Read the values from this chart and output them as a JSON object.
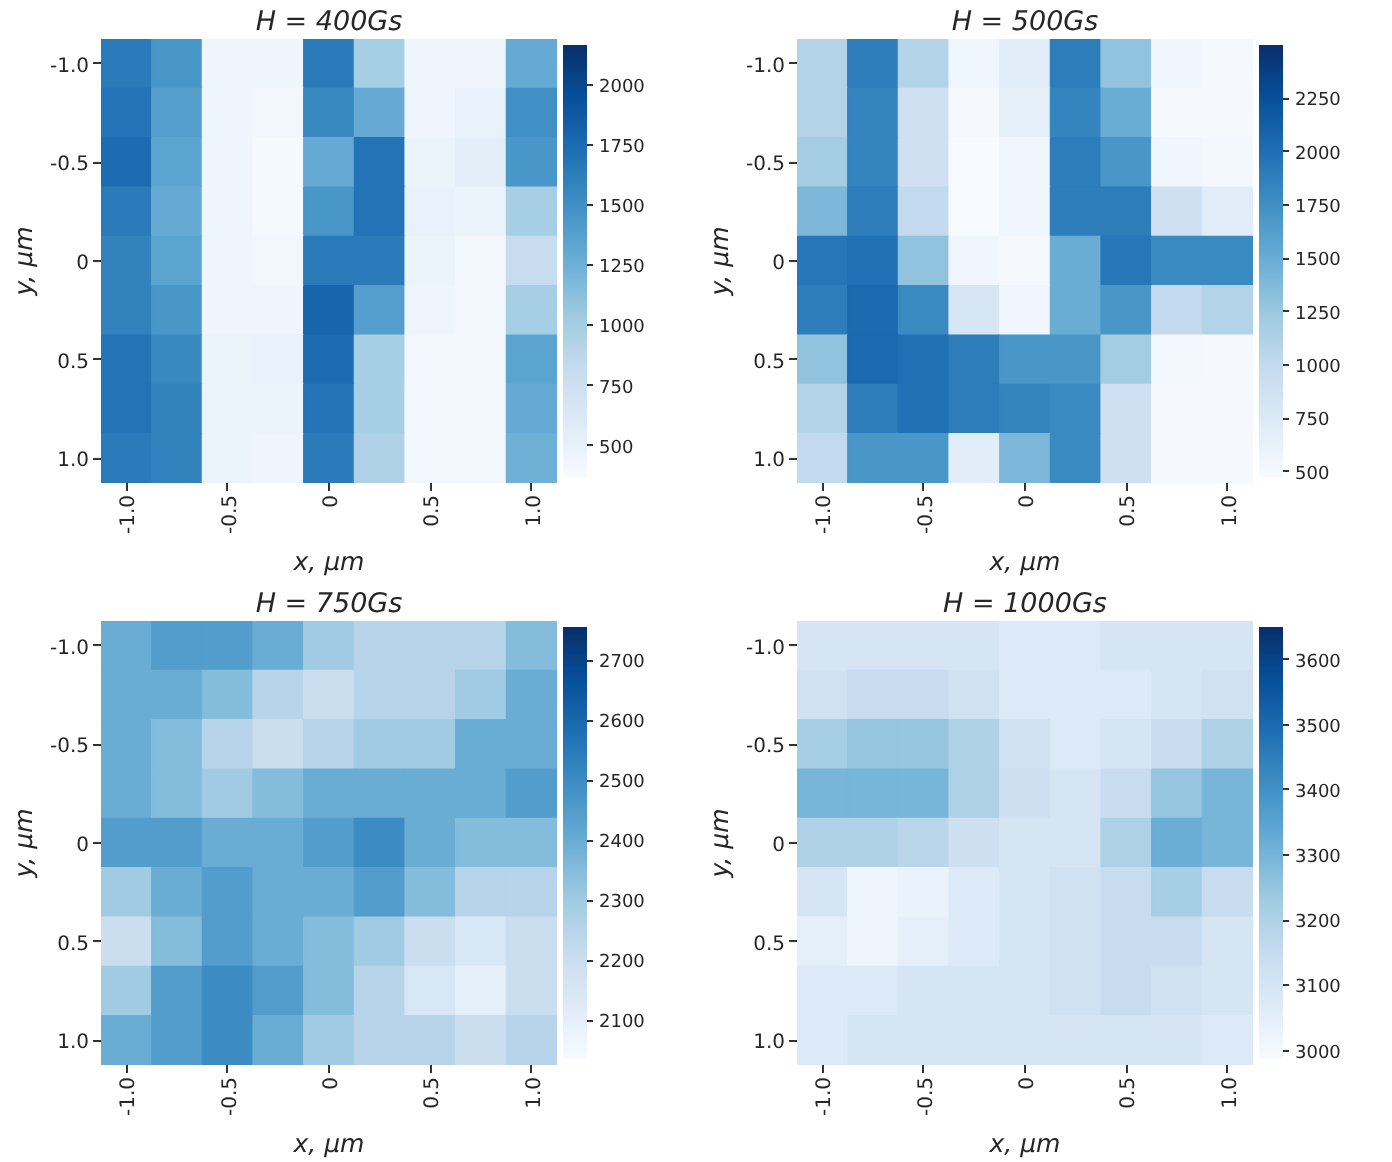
{
  "chart_data": [
    {
      "type": "heatmap",
      "title": "H = 400Gs",
      "xlabel": "x, μm",
      "ylabel": "y, μm",
      "categories": [
        "-1.0",
        null,
        "-0.5",
        null,
        "0",
        null,
        "0.5",
        null,
        "1.0"
      ],
      "y_categories": [
        "-1.0",
        null,
        "-0.5",
        null,
        "0",
        null,
        "0.5",
        null,
        "1.0"
      ],
      "cells": [
        [
          1650,
          1450,
          450,
          450,
          1650,
          1000,
          450,
          450,
          1300
        ],
        [
          1700,
          1400,
          450,
          420,
          1550,
          1300,
          450,
          500,
          1500
        ],
        [
          1750,
          1350,
          450,
          400,
          1300,
          1700,
          480,
          550,
          1450
        ],
        [
          1650,
          1300,
          450,
          400,
          1450,
          1700,
          500,
          480,
          1000
        ],
        [
          1600,
          1350,
          450,
          420,
          1650,
          1650,
          480,
          430,
          800
        ],
        [
          1600,
          1450,
          450,
          450,
          1800,
          1400,
          450,
          420,
          1000
        ],
        [
          1700,
          1550,
          480,
          500,
          1750,
          1000,
          430,
          430,
          1350
        ],
        [
          1700,
          1600,
          480,
          480,
          1700,
          1000,
          420,
          430,
          1300
        ],
        [
          1650,
          1600,
          480,
          450,
          1650,
          950,
          420,
          420,
          1250
        ]
      ],
      "clim": [
        370,
        2165
      ],
      "cticks": [
        500,
        750,
        1000,
        1250,
        1500,
        1750,
        2000
      ]
    },
    {
      "type": "heatmap",
      "title": "H = 500Gs",
      "xlabel": "x, μm",
      "ylabel": "y, μm",
      "categories": [
        "-1.0",
        null,
        "-0.5",
        null,
        "0",
        null,
        "0.5",
        null,
        "1.0"
      ],
      "y_categories": [
        "-1.0",
        null,
        "-0.5",
        null,
        "0",
        null,
        "0.5",
        null,
        "1.0"
      ],
      "cells": [
        [
          1100,
          1900,
          1100,
          550,
          700,
          1900,
          1300,
          550,
          500
        ],
        [
          1100,
          1850,
          900,
          500,
          650,
          1850,
          1500,
          500,
          500
        ],
        [
          1200,
          1850,
          900,
          480,
          550,
          1900,
          1700,
          550,
          520
        ],
        [
          1400,
          1900,
          1000,
          480,
          550,
          1900,
          1900,
          900,
          700
        ],
        [
          1950,
          2000,
          1300,
          550,
          500,
          1500,
          1950,
          1800,
          1800
        ],
        [
          1900,
          2050,
          1800,
          800,
          550,
          1500,
          1700,
          1000,
          1100
        ],
        [
          1300,
          2050,
          2000,
          1900,
          1700,
          1700,
          1200,
          520,
          500
        ],
        [
          1100,
          1900,
          2000,
          1900,
          1850,
          1800,
          900,
          500,
          500
        ],
        [
          1000,
          1700,
          1700,
          700,
          1400,
          1800,
          900,
          500,
          500
        ]
      ],
      "clim": [
        475,
        2500
      ],
      "cticks": [
        500,
        750,
        1000,
        1250,
        1500,
        1750,
        2000,
        2250
      ]
    },
    {
      "type": "heatmap",
      "title": "H = 750Gs",
      "xlabel": "x, μm",
      "ylabel": "y, μm",
      "categories": [
        "-1.0",
        null,
        "-0.5",
        null,
        "0",
        null,
        "0.5",
        null,
        "1.0"
      ],
      "y_categories": [
        "-1.0",
        null,
        "-0.5",
        null,
        "0",
        null,
        "0.5",
        null,
        "1.0"
      ],
      "cells": [
        [
          2400,
          2450,
          2450,
          2400,
          2300,
          2250,
          2250,
          2250,
          2350
        ],
        [
          2400,
          2400,
          2350,
          2250,
          2200,
          2250,
          2250,
          2300,
          2400
        ],
        [
          2400,
          2350,
          2250,
          2200,
          2250,
          2300,
          2300,
          2400,
          2400
        ],
        [
          2400,
          2350,
          2300,
          2350,
          2400,
          2400,
          2400,
          2400,
          2450
        ],
        [
          2450,
          2450,
          2400,
          2400,
          2450,
          2500,
          2400,
          2350,
          2350
        ],
        [
          2300,
          2400,
          2450,
          2400,
          2400,
          2450,
          2350,
          2250,
          2250
        ],
        [
          2200,
          2350,
          2450,
          2400,
          2350,
          2300,
          2200,
          2150,
          2200
        ],
        [
          2300,
          2450,
          2500,
          2450,
          2350,
          2250,
          2150,
          2100,
          2200
        ],
        [
          2400,
          2450,
          2500,
          2400,
          2300,
          2250,
          2250,
          2200,
          2250
        ]
      ],
      "clim": [
        2035,
        2755
      ],
      "cticks": [
        2100,
        2200,
        2300,
        2400,
        2500,
        2600,
        2700
      ]
    },
    {
      "type": "heatmap",
      "title": "H = 1000Gs",
      "xlabel": "x, μm",
      "ylabel": "y, μm",
      "categories": [
        "-1.0",
        null,
        "-0.5",
        null,
        "0",
        null,
        "0.5",
        null,
        "1.0"
      ],
      "y_categories": [
        "-1.0",
        null,
        "-0.5",
        null,
        "0",
        null,
        "0.5",
        null,
        "1.0"
      ],
      "cells": [
        [
          3100,
          3100,
          3100,
          3100,
          3080,
          3080,
          3100,
          3100,
          3100
        ],
        [
          3120,
          3150,
          3150,
          3120,
          3080,
          3080,
          3080,
          3100,
          3120
        ],
        [
          3220,
          3250,
          3250,
          3200,
          3120,
          3080,
          3100,
          3150,
          3200
        ],
        [
          3300,
          3300,
          3300,
          3200,
          3130,
          3100,
          3150,
          3250,
          3300
        ],
        [
          3200,
          3200,
          3180,
          3130,
          3100,
          3100,
          3200,
          3320,
          3300
        ],
        [
          3100,
          3020,
          3030,
          3080,
          3100,
          3120,
          3150,
          3220,
          3150
        ],
        [
          3050,
          3020,
          3050,
          3080,
          3100,
          3120,
          3150,
          3150,
          3100
        ],
        [
          3080,
          3080,
          3100,
          3100,
          3100,
          3120,
          3150,
          3120,
          3100
        ],
        [
          3080,
          3100,
          3100,
          3100,
          3100,
          3100,
          3100,
          3100,
          3080
        ]
      ],
      "clim": [
        2987,
        3650
      ],
      "cticks": [
        3000,
        3100,
        3200,
        3300,
        3400,
        3500,
        3600
      ]
    }
  ]
}
